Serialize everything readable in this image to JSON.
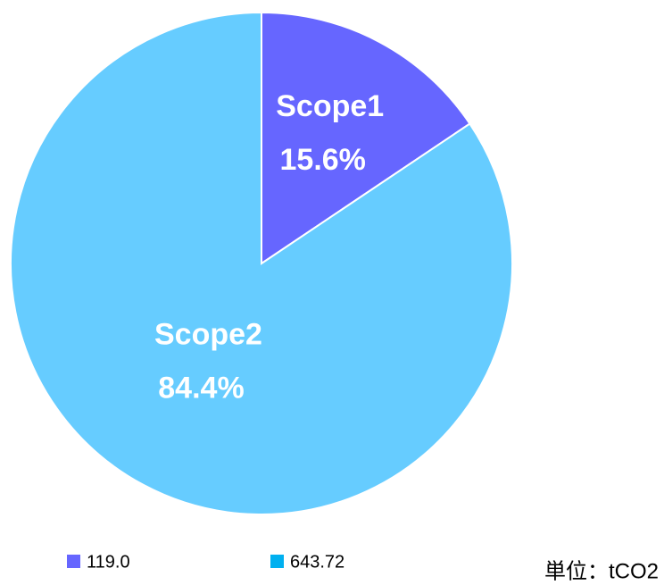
{
  "chart_data": {
    "type": "pie",
    "categories": [
      "Scope1",
      "Scope2"
    ],
    "values": [
      15.6,
      84.4
    ],
    "value_labels": [
      "15.6%",
      "84.4%"
    ],
    "colors": [
      "#6666ff",
      "#66ccff"
    ],
    "legend": [
      {
        "label": "119.0",
        "color": "#6666ff"
      },
      {
        "label": "643.72",
        "color": "#00b0f0"
      }
    ],
    "unit": "単位：tCO2"
  }
}
